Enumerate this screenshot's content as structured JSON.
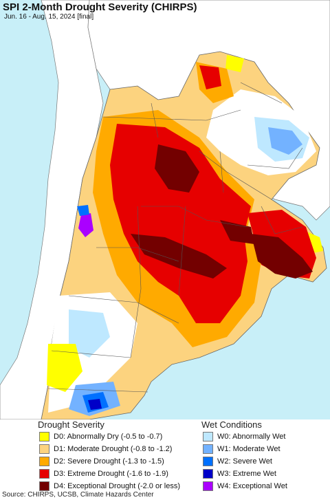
{
  "header": {
    "title": "SPI 2-Month Drought Severity (CHIRPS)",
    "subtitle": "Jun. 16 - Aug. 15, 2024 [final]"
  },
  "legend": {
    "drought_title": "Drought Severity",
    "wet_title": "Wet Conditions",
    "drought": [
      {
        "label": "D0: Abnormally Dry (-0.5 to -0.7)",
        "color": "#ffff00"
      },
      {
        "label": "D1: Moderate Drought (-0.8 to -1.2)",
        "color": "#fcd37f"
      },
      {
        "label": "D2: Severe Drought (-1.3 to -1.5)",
        "color": "#ffaa00"
      },
      {
        "label": "D3: Extreme Drought (-1.6 to -1.9)",
        "color": "#e60000"
      },
      {
        "label": "D4: Exceptional Drought (-2.0 or less)",
        "color": "#730000"
      }
    ],
    "wet": [
      {
        "label": "W0: Abnormally Wet",
        "color": "#bee8ff"
      },
      {
        "label": "W1: Moderate Wet",
        "color": "#73b2ff"
      },
      {
        "label": "W2: Severe Wet",
        "color": "#0070ff"
      },
      {
        "label": "W3: Extreme Wet",
        "color": "#0000c8"
      },
      {
        "label": "W4: Exceptional Wet",
        "color": "#aa00ff"
      }
    ]
  },
  "footer": {
    "source": "Source: CHIRPS, UCSB, Climate Hazards Center"
  },
  "colors": {
    "ocean": "#c8eff8",
    "land_outside": "#ffffff",
    "borders": "#555555"
  }
}
